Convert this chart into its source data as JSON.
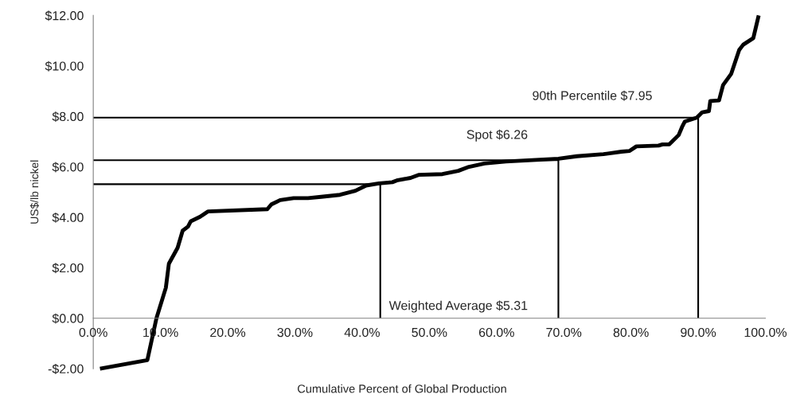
{
  "chart_data": {
    "type": "line",
    "xlabel": "Cumulative Percent of Global Production",
    "ylabel": "US$/lb nickel",
    "xlim": [
      0,
      100
    ],
    "ylim": [
      -2,
      12
    ],
    "xticks": [
      {
        "value": 0,
        "label": "0.0%"
      },
      {
        "value": 10,
        "label": "10.0%"
      },
      {
        "value": 20,
        "label": "20.0%"
      },
      {
        "value": 30,
        "label": "30.0%"
      },
      {
        "value": 40,
        "label": "40.0%"
      },
      {
        "value": 50,
        "label": "50.0%"
      },
      {
        "value": 60,
        "label": "60.0%"
      },
      {
        "value": 70,
        "label": "70.0%"
      },
      {
        "value": 80,
        "label": "80.0%"
      },
      {
        "value": 90,
        "label": "90.0%"
      },
      {
        "value": 100,
        "label": "100.0%"
      }
    ],
    "yticks": [
      {
        "value": -2,
        "label": "-$2.00"
      },
      {
        "value": 0,
        "label": "$0.00"
      },
      {
        "value": 2,
        "label": "$2.00"
      },
      {
        "value": 4,
        "label": "$4.00"
      },
      {
        "value": 6,
        "label": "$6.00"
      },
      {
        "value": 8,
        "label": "$8.00"
      },
      {
        "value": 10,
        "label": "$10.00"
      },
      {
        "value": 12,
        "label": "$12.00"
      }
    ],
    "grid": false,
    "legend": false,
    "marker": "none",
    "line_style": "solid",
    "series": [
      {
        "color": "#000000",
        "x": [
          1.0,
          8.05,
          9.4,
          10.8,
          11.25,
          12.55,
          13.3,
          14.1,
          14.5,
          15.9,
          17.05,
          25.9,
          26.5,
          27.8,
          29.8,
          31.95,
          33.9,
          36.7,
          39.0,
          40.6,
          42.5,
          44.5,
          45.3,
          47.2,
          48.4,
          51.95,
          54.3,
          55.9,
          58.2,
          61.4,
          69.2,
          71.95,
          75.9,
          78.6,
          79.8,
          80.8,
          84.1,
          84.7,
          85.7,
          87.1,
          87.6,
          88.0,
          89.8,
          90.6,
          91.6,
          91.8,
          93.1,
          93.7,
          94.9,
          96.1,
          96.7,
          98.2,
          99.0
        ],
        "values": [
          -2.0,
          -1.66,
          0.0,
          1.21,
          2.16,
          2.79,
          3.47,
          3.63,
          3.84,
          4.02,
          4.23,
          4.32,
          4.51,
          4.68,
          4.76,
          4.76,
          4.81,
          4.89,
          5.05,
          5.26,
          5.34,
          5.39,
          5.47,
          5.56,
          5.68,
          5.71,
          5.84,
          6.0,
          6.13,
          6.21,
          6.32,
          6.42,
          6.5,
          6.6,
          6.63,
          6.81,
          6.84,
          6.89,
          6.89,
          7.26,
          7.58,
          7.79,
          7.95,
          8.16,
          8.21,
          8.61,
          8.63,
          9.24,
          9.68,
          10.63,
          10.84,
          11.1,
          12.0
        ]
      },
      {
        "color": "#000000",
        "x": [
          0,
          42.7,
          42.7
        ],
        "values": [
          5.31,
          5.31,
          0
        ]
      },
      {
        "color": "#000000",
        "x": [
          0,
          69.2,
          69.2
        ],
        "values": [
          6.26,
          6.26,
          0
        ]
      },
      {
        "color": "#000000",
        "x": [
          0,
          90.0,
          90.0
        ],
        "values": [
          7.95,
          7.95,
          0
        ]
      }
    ],
    "annotations": [
      "Weighted Average $5.31",
      "Spot $6.26",
      "90th Percentile $7.95"
    ]
  }
}
